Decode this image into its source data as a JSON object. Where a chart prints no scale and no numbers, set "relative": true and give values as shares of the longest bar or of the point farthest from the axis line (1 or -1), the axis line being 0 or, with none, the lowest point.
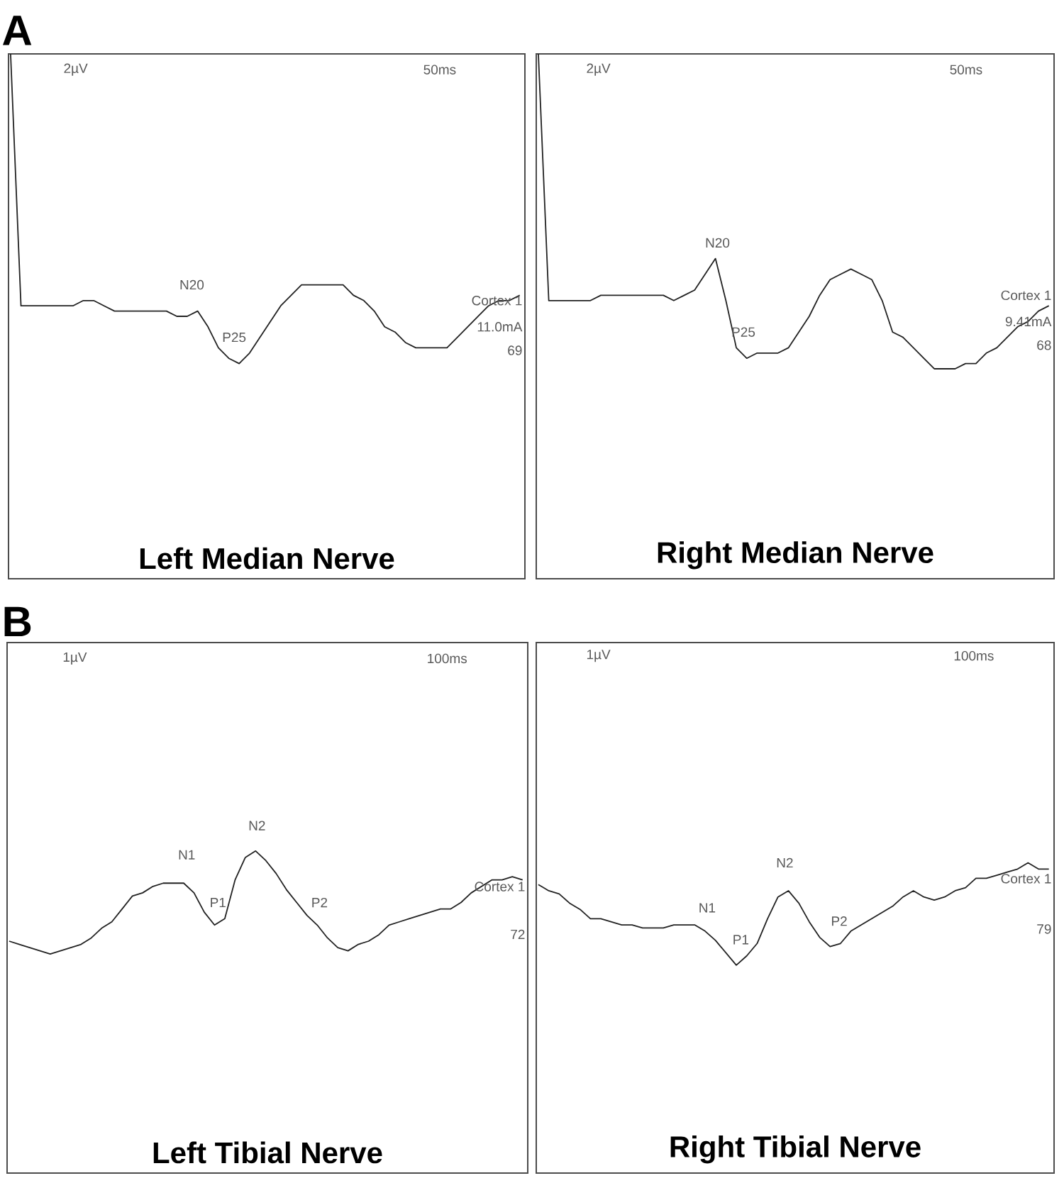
{
  "chart_data": [
    {
      "type": "line",
      "relative": true,
      "title": "Left Median Nerve",
      "color": "#222222",
      "annotations": [
        "A",
        "2µV",
        "50ms",
        "N20",
        "P25",
        "Cortex 1",
        "11.0mA",
        "69"
      ],
      "categories": [
        null,
        null,
        null,
        null,
        null,
        null,
        null,
        null,
        null,
        null,
        null,
        null,
        null,
        null,
        null,
        null,
        null,
        null,
        null,
        null,
        null,
        null,
        null,
        null,
        null,
        null,
        null,
        null,
        null,
        null,
        null,
        null,
        null,
        null,
        null,
        null,
        null,
        null,
        null,
        null,
        null,
        null,
        null,
        null,
        null,
        null,
        null,
        null,
        null,
        null
      ],
      "values": [
        1.0,
        0.52,
        0.52,
        0.52,
        0.52,
        0.52,
        0.52,
        0.53,
        0.53,
        0.52,
        0.51,
        0.51,
        0.51,
        0.51,
        0.51,
        0.51,
        0.5,
        0.5,
        0.51,
        0.48,
        0.44,
        0.42,
        0.41,
        0.43,
        0.46,
        0.49,
        0.52,
        0.54,
        0.56,
        0.56,
        0.56,
        0.56,
        0.56,
        0.54,
        0.53,
        0.51,
        0.48,
        0.47,
        0.45,
        0.44,
        0.44,
        0.44,
        0.44,
        0.46,
        0.48,
        0.5,
        0.52,
        0.53,
        0.53,
        0.54
      ]
    },
    {
      "type": "line",
      "relative": true,
      "title": "Right Median Nerve",
      "color": "#222222",
      "annotations": [
        "2µV",
        "50ms",
        "N20",
        "P25",
        "Cortex 1",
        "9.41mA",
        "68"
      ],
      "categories": [
        null,
        null,
        null,
        null,
        null,
        null,
        null,
        null,
        null,
        null,
        null,
        null,
        null,
        null,
        null,
        null,
        null,
        null,
        null,
        null,
        null,
        null,
        null,
        null,
        null,
        null,
        null,
        null,
        null,
        null,
        null,
        null,
        null,
        null,
        null,
        null,
        null,
        null,
        null,
        null,
        null,
        null,
        null,
        null,
        null,
        null,
        null,
        null,
        null,
        null
      ],
      "values": [
        1.0,
        0.53,
        0.53,
        0.53,
        0.53,
        0.53,
        0.54,
        0.54,
        0.54,
        0.54,
        0.54,
        0.54,
        0.54,
        0.53,
        0.54,
        0.55,
        0.58,
        0.61,
        0.53,
        0.44,
        0.42,
        0.43,
        0.43,
        0.43,
        0.44,
        0.47,
        0.5,
        0.54,
        0.57,
        0.58,
        0.59,
        0.58,
        0.57,
        0.53,
        0.47,
        0.46,
        0.44,
        0.42,
        0.4,
        0.4,
        0.4,
        0.41,
        0.41,
        0.43,
        0.44,
        0.46,
        0.48,
        0.49,
        0.51,
        0.52
      ]
    },
    {
      "type": "line",
      "relative": true,
      "title": "Left Tibial Nerve",
      "color": "#222222",
      "annotations": [
        "B",
        "1µV",
        "100ms",
        "N1",
        "P1",
        "N2",
        "P2",
        "Cortex 1",
        "72"
      ],
      "categories": [
        null,
        null,
        null,
        null,
        null,
        null,
        null,
        null,
        null,
        null,
        null,
        null,
        null,
        null,
        null,
        null,
        null,
        null,
        null,
        null,
        null,
        null,
        null,
        null,
        null,
        null,
        null,
        null,
        null,
        null,
        null,
        null,
        null,
        null,
        null,
        null,
        null,
        null,
        null,
        null,
        null,
        null,
        null,
        null,
        null,
        null,
        null,
        null,
        null,
        null,
        null
      ],
      "values": [
        0.72,
        0.71,
        0.7,
        0.69,
        0.68,
        0.69,
        0.7,
        0.71,
        0.73,
        0.76,
        0.78,
        0.82,
        0.86,
        0.87,
        0.89,
        0.9,
        0.9,
        0.9,
        0.87,
        0.81,
        0.77,
        0.79,
        0.91,
        0.98,
        1.0,
        0.97,
        0.93,
        0.88,
        0.84,
        0.8,
        0.77,
        0.73,
        0.7,
        0.69,
        0.71,
        0.72,
        0.74,
        0.77,
        0.78,
        0.79,
        0.8,
        0.81,
        0.82,
        0.82,
        0.84,
        0.87,
        0.89,
        0.91,
        0.91,
        0.92,
        0.91
      ]
    },
    {
      "type": "line",
      "relative": true,
      "title": "Right Tibial Nerve",
      "color": "#222222",
      "annotations": [
        "1µV",
        "100ms",
        "N1",
        "P1",
        "N2",
        "P2",
        "Cortex 1",
        "79"
      ],
      "categories": [
        null,
        null,
        null,
        null,
        null,
        null,
        null,
        null,
        null,
        null,
        null,
        null,
        null,
        null,
        null,
        null,
        null,
        null,
        null,
        null,
        null,
        null,
        null,
        null,
        null,
        null,
        null,
        null,
        null,
        null,
        null,
        null,
        null,
        null,
        null,
        null,
        null,
        null,
        null,
        null,
        null,
        null,
        null,
        null,
        null,
        null,
        null,
        null,
        null,
        null
      ],
      "values": [
        0.93,
        0.91,
        0.9,
        0.87,
        0.85,
        0.82,
        0.82,
        0.81,
        0.8,
        0.8,
        0.79,
        0.79,
        0.79,
        0.8,
        0.8,
        0.8,
        0.78,
        0.75,
        0.71,
        0.67,
        0.7,
        0.74,
        0.82,
        0.89,
        0.91,
        0.87,
        0.81,
        0.76,
        0.73,
        0.74,
        0.78,
        0.8,
        0.82,
        0.84,
        0.86,
        0.89,
        0.91,
        0.89,
        0.88,
        0.89,
        0.91,
        0.92,
        0.95,
        0.95,
        0.96,
        0.97,
        0.98,
        1.0,
        0.98,
        0.98
      ]
    }
  ]
}
